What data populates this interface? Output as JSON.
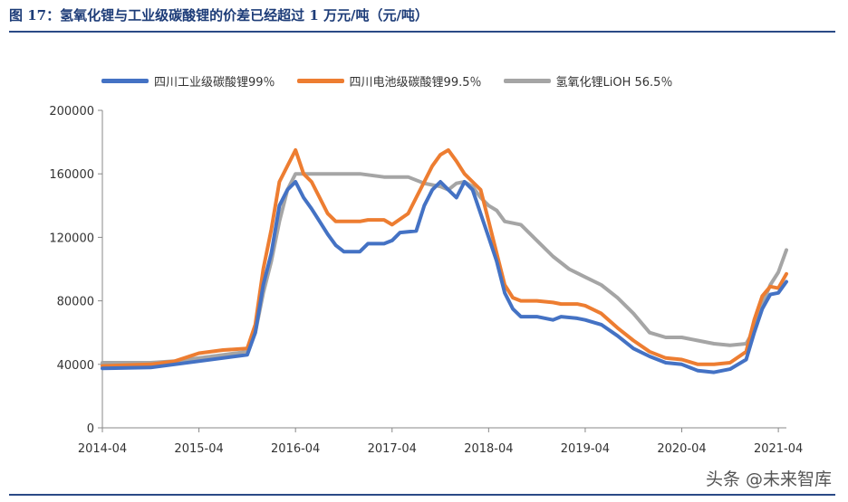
{
  "figure_title": "图 17：氢氧化锂与工业级碳酸锂的价差已经超过 1 万元/吨（元/吨）",
  "watermark": "头条 @未来智库",
  "chart_data": {
    "type": "line",
    "title": "",
    "xlabel": "",
    "ylabel": "",
    "ylim": [
      0,
      200000
    ],
    "yticks": [
      "0",
      "40000",
      "80000",
      "120000",
      "160000",
      "200000"
    ],
    "xticks": [
      "2014-04",
      "2015-04",
      "2016-04",
      "2017-04",
      "2018-04",
      "2019-04",
      "2020-04",
      "2021-04"
    ],
    "xrange": [
      "2014-04",
      "2021-05"
    ],
    "grid": false,
    "legend_position": "top",
    "series": [
      {
        "name": "四川工业级碳酸锂99％",
        "color": "#4472c4",
        "points": [
          [
            "2014-04",
            37500
          ],
          [
            "2014-10",
            38000
          ],
          [
            "2015-01",
            40000
          ],
          [
            "2015-04",
            42000
          ],
          [
            "2015-07",
            44000
          ],
          [
            "2015-10",
            46000
          ],
          [
            "2015-11",
            60000
          ],
          [
            "2015-12",
            90000
          ],
          [
            "2016-01",
            110000
          ],
          [
            "2016-02",
            140000
          ],
          [
            "2016-03",
            150000
          ],
          [
            "2016-04",
            155000
          ],
          [
            "2016-05",
            145000
          ],
          [
            "2016-06",
            138000
          ],
          [
            "2016-07",
            130000
          ],
          [
            "2016-08",
            122000
          ],
          [
            "2016-09",
            115000
          ],
          [
            "2016-10",
            111000
          ],
          [
            "2016-12",
            111000
          ],
          [
            "2017-01",
            116000
          ],
          [
            "2017-03",
            116000
          ],
          [
            "2017-04",
            118000
          ],
          [
            "2017-05",
            123000
          ],
          [
            "2017-07",
            124000
          ],
          [
            "2017-08",
            140000
          ],
          [
            "2017-09",
            150000
          ],
          [
            "2017-10",
            155000
          ],
          [
            "2017-11",
            150000
          ],
          [
            "2017-12",
            145000
          ],
          [
            "2018-01",
            155000
          ],
          [
            "2018-02",
            150000
          ],
          [
            "2018-03",
            135000
          ],
          [
            "2018-04",
            120000
          ],
          [
            "2018-05",
            105000
          ],
          [
            "2018-06",
            85000
          ],
          [
            "2018-07",
            75000
          ],
          [
            "2018-08",
            70000
          ],
          [
            "2018-10",
            70000
          ],
          [
            "2018-12",
            68000
          ],
          [
            "2019-01",
            70000
          ],
          [
            "2019-03",
            69000
          ],
          [
            "2019-04",
            68000
          ],
          [
            "2019-06",
            65000
          ],
          [
            "2019-08",
            58000
          ],
          [
            "2019-10",
            50000
          ],
          [
            "2019-12",
            45000
          ],
          [
            "2020-02",
            41000
          ],
          [
            "2020-04",
            40000
          ],
          [
            "2020-06",
            36000
          ],
          [
            "2020-08",
            35000
          ],
          [
            "2020-10",
            37000
          ],
          [
            "2020-12",
            43000
          ],
          [
            "2021-01",
            60000
          ],
          [
            "2021-02",
            75000
          ],
          [
            "2021-03",
            84000
          ],
          [
            "2021-04",
            85000
          ],
          [
            "2021-05",
            92000
          ]
        ]
      },
      {
        "name": "四川电池级碳酸锂99.5％",
        "color": "#ed7d31",
        "points": [
          [
            "2014-04",
            39000
          ],
          [
            "2014-10",
            40000
          ],
          [
            "2015-01",
            42000
          ],
          [
            "2015-04",
            47000
          ],
          [
            "2015-07",
            49000
          ],
          [
            "2015-10",
            50000
          ],
          [
            "2015-11",
            65000
          ],
          [
            "2015-12",
            100000
          ],
          [
            "2016-01",
            125000
          ],
          [
            "2016-02",
            155000
          ],
          [
            "2016-03",
            165000
          ],
          [
            "2016-04",
            175000
          ],
          [
            "2016-05",
            160000
          ],
          [
            "2016-06",
            155000
          ],
          [
            "2016-07",
            145000
          ],
          [
            "2016-08",
            135000
          ],
          [
            "2016-09",
            130000
          ],
          [
            "2016-12",
            130000
          ],
          [
            "2017-01",
            131000
          ],
          [
            "2017-03",
            131000
          ],
          [
            "2017-04",
            128000
          ],
          [
            "2017-06",
            135000
          ],
          [
            "2017-07",
            145000
          ],
          [
            "2017-08",
            155000
          ],
          [
            "2017-09",
            165000
          ],
          [
            "2017-10",
            172000
          ],
          [
            "2017-11",
            175000
          ],
          [
            "2017-12",
            168000
          ],
          [
            "2018-01",
            160000
          ],
          [
            "2018-02",
            155000
          ],
          [
            "2018-03",
            150000
          ],
          [
            "2018-04",
            130000
          ],
          [
            "2018-05",
            110000
          ],
          [
            "2018-06",
            90000
          ],
          [
            "2018-07",
            82000
          ],
          [
            "2018-08",
            80000
          ],
          [
            "2018-10",
            80000
          ],
          [
            "2018-12",
            79000
          ],
          [
            "2019-01",
            78000
          ],
          [
            "2019-03",
            78000
          ],
          [
            "2019-04",
            77000
          ],
          [
            "2019-06",
            72000
          ],
          [
            "2019-08",
            63000
          ],
          [
            "2019-10",
            55000
          ],
          [
            "2019-12",
            48000
          ],
          [
            "2020-02",
            44000
          ],
          [
            "2020-04",
            43000
          ],
          [
            "2020-06",
            40000
          ],
          [
            "2020-08",
            40000
          ],
          [
            "2020-10",
            41000
          ],
          [
            "2020-12",
            48000
          ],
          [
            "2021-01",
            68000
          ],
          [
            "2021-02",
            83000
          ],
          [
            "2021-03",
            89000
          ],
          [
            "2021-04",
            88000
          ],
          [
            "2021-05",
            97000
          ]
        ]
      },
      {
        "name": "氢氧化锂LiOH 56.5％",
        "color": "#a5a5a5",
        "points": [
          [
            "2014-04",
            41000
          ],
          [
            "2014-10",
            41000
          ],
          [
            "2015-01",
            42000
          ],
          [
            "2015-04",
            44000
          ],
          [
            "2015-07",
            46000
          ],
          [
            "2015-10",
            48000
          ],
          [
            "2015-11",
            60000
          ],
          [
            "2015-12",
            85000
          ],
          [
            "2016-01",
            105000
          ],
          [
            "2016-02",
            130000
          ],
          [
            "2016-03",
            150000
          ],
          [
            "2016-04",
            160000
          ],
          [
            "2016-06",
            160000
          ],
          [
            "2016-12",
            160000
          ],
          [
            "2017-03",
            158000
          ],
          [
            "2017-06",
            158000
          ],
          [
            "2017-08",
            154000
          ],
          [
            "2017-09",
            153000
          ],
          [
            "2017-10",
            152000
          ],
          [
            "2017-11",
            150000
          ],
          [
            "2017-12",
            154000
          ],
          [
            "2018-01",
            155000
          ],
          [
            "2018-02",
            152000
          ],
          [
            "2018-03",
            145000
          ],
          [
            "2018-04",
            140000
          ],
          [
            "2018-05",
            137000
          ],
          [
            "2018-06",
            130000
          ],
          [
            "2018-08",
            128000
          ],
          [
            "2018-10",
            118000
          ],
          [
            "2018-12",
            108000
          ],
          [
            "2019-02",
            100000
          ],
          [
            "2019-04",
            95000
          ],
          [
            "2019-06",
            90000
          ],
          [
            "2019-08",
            82000
          ],
          [
            "2019-10",
            72000
          ],
          [
            "2019-12",
            60000
          ],
          [
            "2020-02",
            57000
          ],
          [
            "2020-04",
            57000
          ],
          [
            "2020-06",
            55000
          ],
          [
            "2020-08",
            53000
          ],
          [
            "2020-10",
            52000
          ],
          [
            "2020-12",
            53000
          ],
          [
            "2021-01",
            62000
          ],
          [
            "2021-02",
            78000
          ],
          [
            "2021-03",
            90000
          ],
          [
            "2021-04",
            98000
          ],
          [
            "2021-05",
            112000
          ]
        ]
      }
    ]
  }
}
